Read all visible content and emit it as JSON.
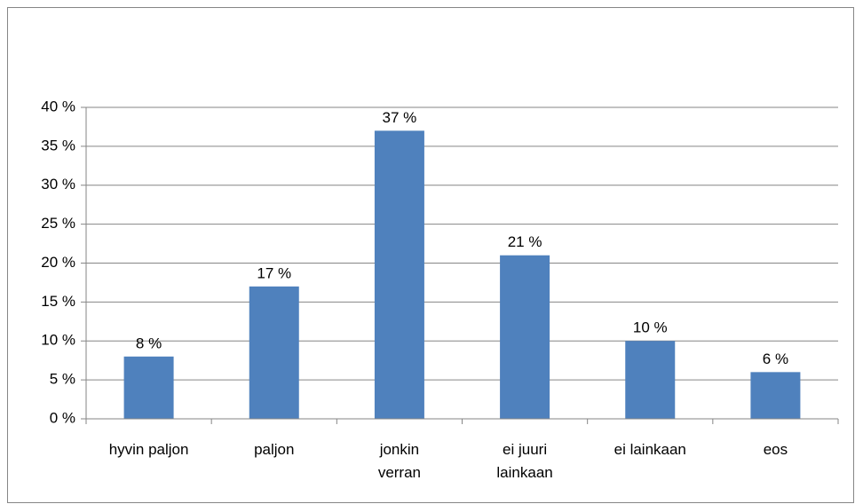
{
  "chart_data": {
    "type": "bar",
    "categories": [
      "hyvin paljon",
      "paljon",
      "jonkin verran",
      "ei juuri lainkaan",
      "ei lainkaan",
      "eos"
    ],
    "values": [
      8,
      17,
      37,
      21,
      10,
      6
    ],
    "value_labels": [
      "8 %",
      "17 %",
      "37 %",
      "21 %",
      "10 %",
      "6 %"
    ],
    "color": "#4f81bd",
    "ylim": [
      0,
      40
    ],
    "yticks": [
      {
        "value": 0,
        "label": "0 %"
      },
      {
        "value": 5,
        "label": "5 %"
      },
      {
        "value": 10,
        "label": "10 %"
      },
      {
        "value": 15,
        "label": "15 %"
      },
      {
        "value": 20,
        "label": "20 %"
      },
      {
        "value": 25,
        "label": "25 %"
      },
      {
        "value": 30,
        "label": "30 %"
      },
      {
        "value": 35,
        "label": "35 %"
      },
      {
        "value": 40,
        "label": "40 %"
      }
    ],
    "grid": true
  }
}
